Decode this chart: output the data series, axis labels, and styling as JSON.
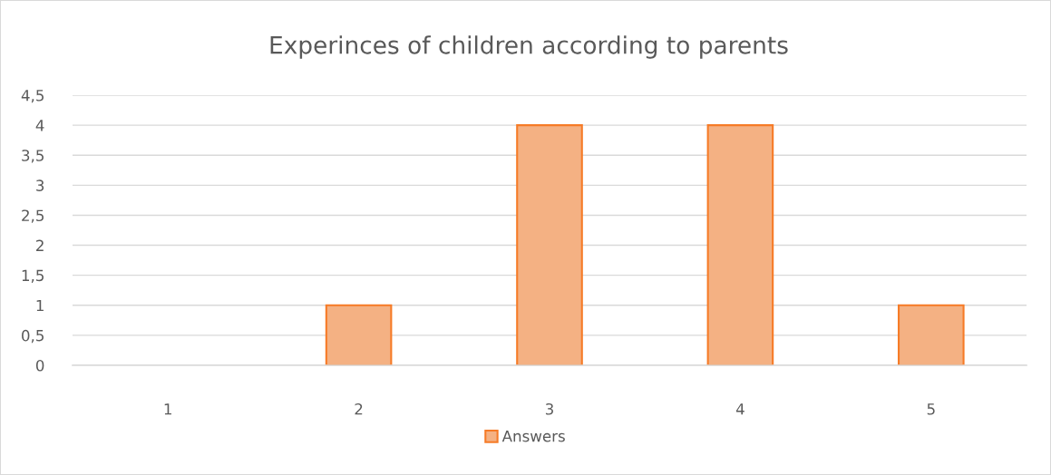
{
  "chart_data": {
    "type": "bar",
    "title": "Experinces of children according to parents",
    "categories": [
      "1",
      "2",
      "3",
      "4",
      "5"
    ],
    "series": [
      {
        "name": "Answers",
        "color": "#f4b183",
        "values": [
          0,
          1,
          4,
          4,
          1
        ]
      }
    ],
    "ylim": [
      0,
      4.5
    ],
    "yticks": [
      0,
      {
        "value": 0.5,
        "label": "0,5"
      },
      1,
      {
        "value": 1.5,
        "label": "1,5"
      },
      2,
      {
        "value": 2.5,
        "label": "2,5"
      },
      3,
      {
        "value": 3.5,
        "label": "3,5"
      },
      4,
      {
        "value": 4.5,
        "label": "4,5"
      }
    ],
    "grid": "y",
    "legend": "bottom"
  }
}
